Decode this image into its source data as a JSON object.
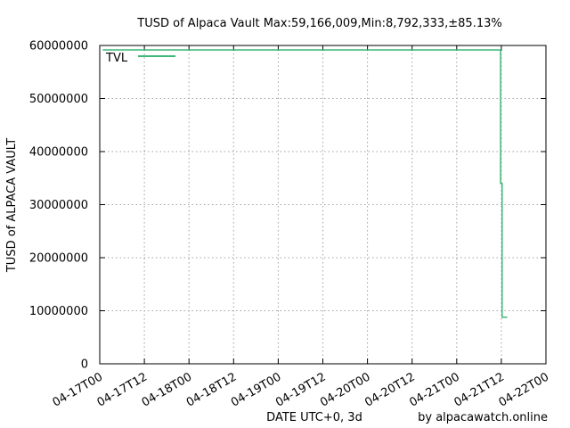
{
  "chart_data": {
    "type": "line",
    "title": "TUSD of Alpaca Vault Max:59,166,009,Min:8,792,333,±85.13%",
    "xlabel": "DATE UTC+0, 3d",
    "ylabel": "TUSD of ALPACA VAULT",
    "credit": "by alpacawatch.online",
    "xlim_hours": [
      0,
      120
    ],
    "ylim": [
      0,
      60000000
    ],
    "x_ticks": [
      {
        "h": 0,
        "label": "04-17T00"
      },
      {
        "h": 12,
        "label": "04-17T12"
      },
      {
        "h": 24,
        "label": "04-18T00"
      },
      {
        "h": 36,
        "label": "04-18T12"
      },
      {
        "h": 48,
        "label": "04-19T00"
      },
      {
        "h": 60,
        "label": "04-19T12"
      },
      {
        "h": 72,
        "label": "04-20T00"
      },
      {
        "h": 84,
        "label": "04-20T12"
      },
      {
        "h": 96,
        "label": "04-21T00"
      },
      {
        "h": 108,
        "label": "04-21T12"
      },
      {
        "h": 120,
        "label": "04-22T00"
      }
    ],
    "y_ticks": [
      {
        "v": 0,
        "label": "0"
      },
      {
        "v": 10000000,
        "label": "10000000"
      },
      {
        "v": 20000000,
        "label": "20000000"
      },
      {
        "v": 30000000,
        "label": "30000000"
      },
      {
        "v": 40000000,
        "label": "40000000"
      },
      {
        "v": 50000000,
        "label": "50000000"
      },
      {
        "v": 60000000,
        "label": "60000000"
      }
    ],
    "grid": true,
    "legend": "top-left",
    "series": [
      {
        "name": "TVL",
        "color": "#3cb878",
        "points": [
          [
            0.8,
            59166009
          ],
          [
            107.8,
            59166009
          ],
          [
            107.8,
            34000000
          ],
          [
            108.2,
            34000000
          ],
          [
            108.2,
            8792333
          ],
          [
            109.6,
            8792333
          ]
        ]
      }
    ]
  }
}
